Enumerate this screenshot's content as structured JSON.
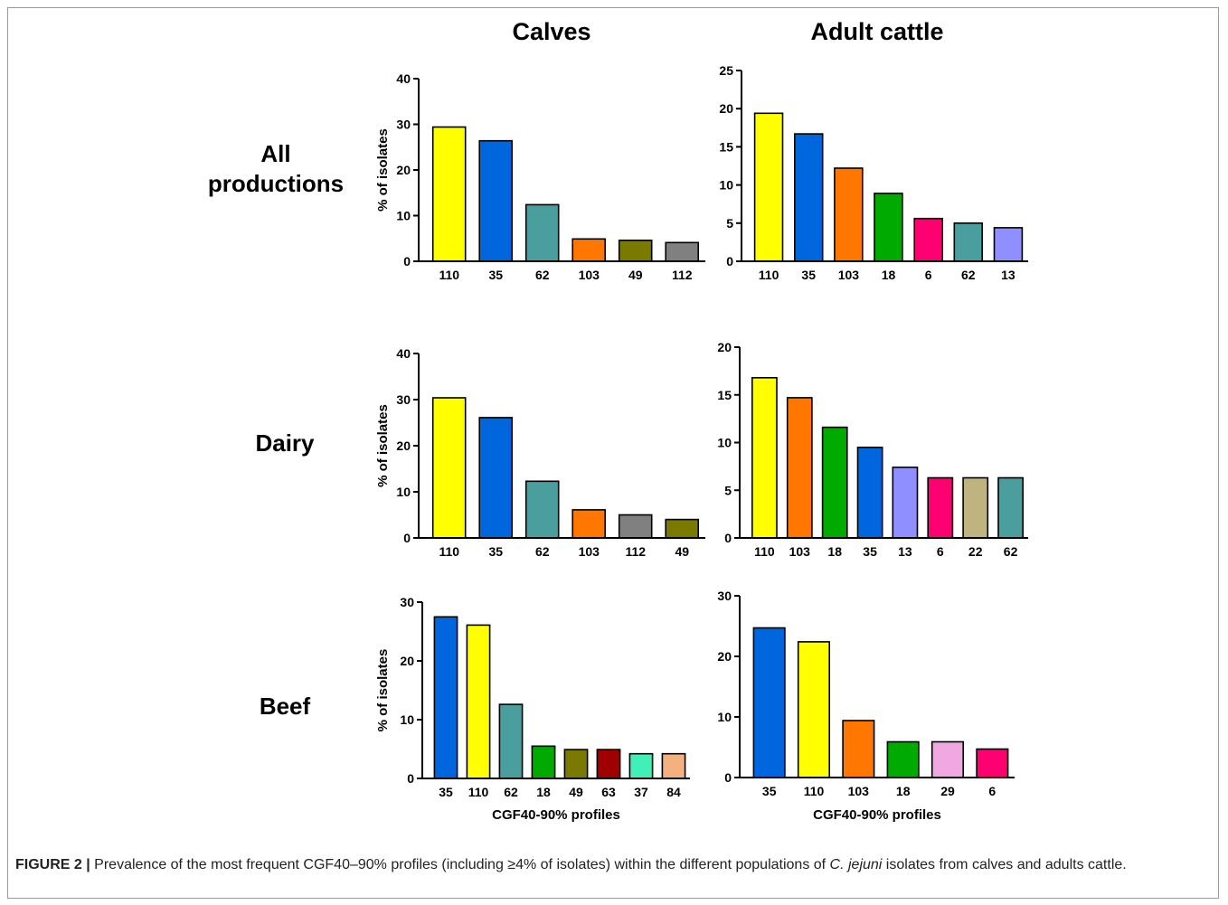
{
  "columns": {
    "calves": "Calves",
    "adult": "Adult cattle"
  },
  "rows": {
    "all": "All productions",
    "dairy": "Dairy",
    "beef": "Beef"
  },
  "caption": {
    "label": "FIGURE 2 |",
    "text_before": " Prevalence of the most frequent CGF40–90% profiles (including ≥4% of isolates) within the different populations of ",
    "italic": "C. jejuni",
    "text_after": " isolates from calves and adults cattle."
  },
  "colors": {
    "yellow": "#ffff00",
    "blue": "#0066dd",
    "teal": "#4a9e9e",
    "orange": "#ff7700",
    "olive": "#7a7a00",
    "gray": "#808080",
    "green": "#00aa00",
    "magenta": "#ff0070",
    "periwinkle": "#8f8fff",
    "khaki": "#bfb47f",
    "darkred": "#a00000",
    "aqua": "#40f0b8",
    "peach": "#f5b080",
    "pink": "#f0a8e0"
  },
  "chart_data": [
    {
      "type": "bar",
      "title": "",
      "xlabel": "",
      "ylabel": "% of isolates",
      "ylim": [
        0,
        40
      ],
      "yticks": [
        0,
        10,
        20,
        30,
        40
      ],
      "categories": [
        "110",
        "35",
        "62",
        "103",
        "49",
        "112"
      ],
      "values": [
        29.4,
        26.4,
        12.4,
        4.9,
        4.6,
        4.1
      ],
      "bar_colors": [
        "#ffff00",
        "#0066dd",
        "#4a9e9e",
        "#ff7700",
        "#7a7a00",
        "#808080"
      ]
    },
    {
      "type": "bar",
      "title": "",
      "xlabel": "",
      "ylabel": "",
      "ylim": [
        0,
        25
      ],
      "yticks": [
        0,
        5,
        10,
        15,
        20,
        25
      ],
      "categories": [
        "110",
        "35",
        "103",
        "18",
        "6",
        "62",
        "13"
      ],
      "values": [
        19.4,
        16.7,
        12.2,
        8.9,
        5.6,
        5.0,
        4.4
      ],
      "bar_colors": [
        "#ffff00",
        "#0066dd",
        "#ff7700",
        "#00aa00",
        "#ff0070",
        "#4a9e9e",
        "#8f8fff"
      ]
    },
    {
      "type": "bar",
      "title": "",
      "xlabel": "",
      "ylabel": "% of isolates",
      "ylim": [
        0,
        40
      ],
      "yticks": [
        0,
        10,
        20,
        30,
        40
      ],
      "categories": [
        "110",
        "35",
        "62",
        "103",
        "112",
        "49"
      ],
      "values": [
        30.4,
        26.1,
        12.3,
        6.1,
        5.0,
        4.0
      ],
      "bar_colors": [
        "#ffff00",
        "#0066dd",
        "#4a9e9e",
        "#ff7700",
        "#808080",
        "#7a7a00"
      ]
    },
    {
      "type": "bar",
      "title": "",
      "xlabel": "",
      "ylabel": "",
      "ylim": [
        0,
        20
      ],
      "yticks": [
        0,
        5,
        10,
        15,
        20
      ],
      "categories": [
        "110",
        "103",
        "18",
        "35",
        "13",
        "6",
        "22",
        "62"
      ],
      "values": [
        16.8,
        14.7,
        11.6,
        9.5,
        7.4,
        6.3,
        6.3,
        6.3
      ],
      "bar_colors": [
        "#ffff00",
        "#ff7700",
        "#00aa00",
        "#0066dd",
        "#8f8fff",
        "#ff0070",
        "#bfb47f",
        "#4a9e9e"
      ]
    },
    {
      "type": "bar",
      "title": "",
      "xlabel": "CGF40-90% profiles",
      "ylabel": "% of isolates",
      "ylim": [
        0,
        30
      ],
      "yticks": [
        0,
        10,
        20,
        30
      ],
      "categories": [
        "35",
        "110",
        "62",
        "18",
        "49",
        "63",
        "37",
        "84"
      ],
      "values": [
        27.5,
        26.1,
        12.6,
        5.5,
        4.9,
        4.9,
        4.2,
        4.2
      ],
      "bar_colors": [
        "#0066dd",
        "#ffff00",
        "#4a9e9e",
        "#00aa00",
        "#7a7a00",
        "#a00000",
        "#40f0b8",
        "#f5b080"
      ]
    },
    {
      "type": "bar",
      "title": "",
      "xlabel": "CGF40-90% profiles",
      "ylabel": "",
      "ylim": [
        0,
        30
      ],
      "yticks": [
        0,
        10,
        20,
        30
      ],
      "categories": [
        "35",
        "110",
        "103",
        "18",
        "29",
        "6"
      ],
      "values": [
        24.7,
        22.4,
        9.4,
        5.9,
        5.9,
        4.7
      ],
      "bar_colors": [
        "#0066dd",
        "#ffff00",
        "#ff7700",
        "#00aa00",
        "#f0a8e0",
        "#ff0070"
      ]
    }
  ]
}
